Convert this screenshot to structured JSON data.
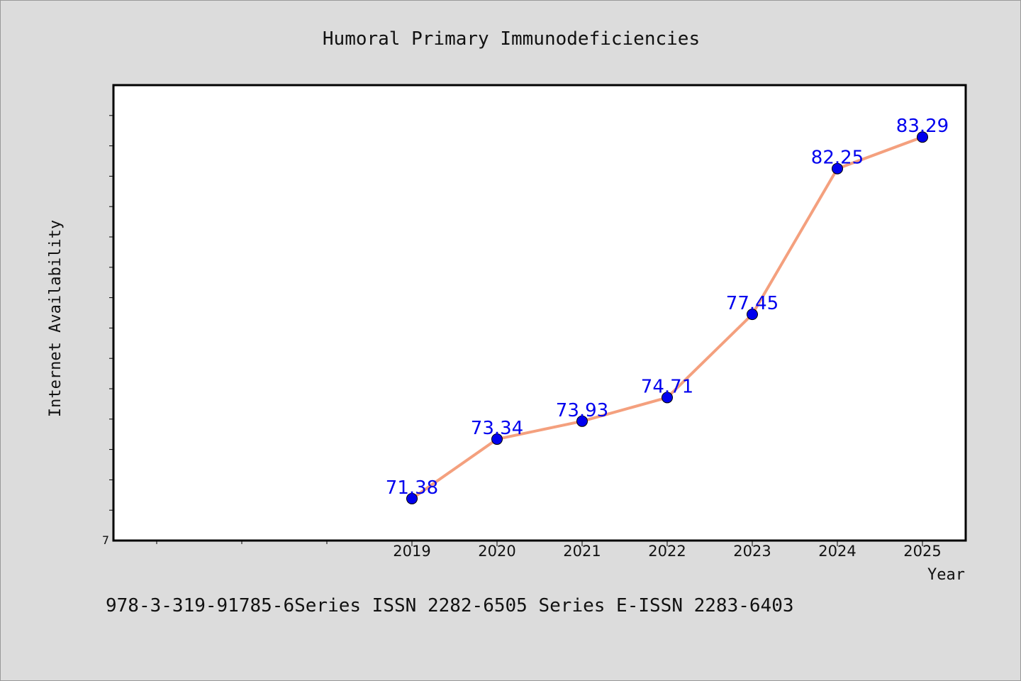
{
  "chart_data": {
    "type": "line",
    "title": "Humoral Primary Immunodeficiencies",
    "xlabel": "Year",
    "ylabel": "Internet Availability",
    "x": [
      "2019",
      "2020",
      "2021",
      "2022",
      "2023",
      "2024",
      "2025"
    ],
    "series": [
      {
        "values": [
          71.38,
          73.34,
          73.93,
          74.71,
          77.45,
          82.25,
          83.29
        ],
        "labels": [
          "71.38",
          "73.34",
          "73.93",
          "74.71",
          "77.45",
          "82.25",
          "83.29"
        ]
      }
    ],
    "ylim": [
      70,
      85
    ],
    "y_tick_labels": [
      "7"
    ],
    "grid": false,
    "line_color": "#f4a07e",
    "marker_color": "#0000ee",
    "label_color": "#0000ee"
  },
  "footer": {
    "text": "978-3-319-91785-6Series ISSN 2282-6505 Series E-ISSN 2283-6403"
  }
}
